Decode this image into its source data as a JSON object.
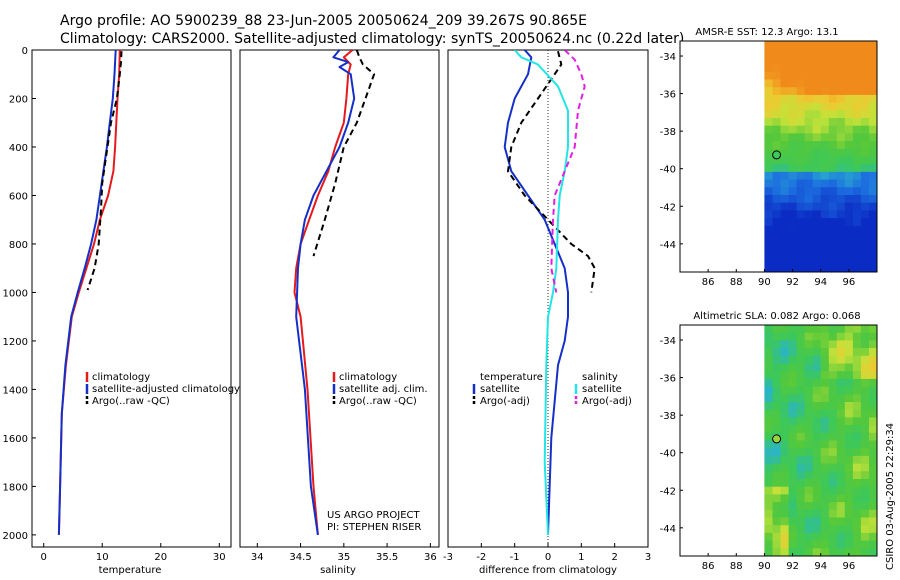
{
  "header": {
    "line1": "Argo profile: AO 5900239_88 23-Jun-2005 20050624_209 39.267S 90.865E",
    "line2": "Climatology: CARS2000. Satellite-adjusted climatology: synTS_20050624.nc (0.22d later)"
  },
  "colors": {
    "climatology": "#e41a1c",
    "satellite": "#1530c8",
    "argo": "#000000",
    "satellite_salinity": "#22e5e5",
    "argo_salinity": "#e020e0"
  },
  "chart_data": [
    {
      "type": "line",
      "xlabel": "temperature",
      "xlim": [
        -2,
        32
      ],
      "ylim": [
        2050,
        0
      ],
      "xticks": [
        0,
        10,
        20,
        30
      ],
      "yticks": [
        0,
        200,
        400,
        600,
        800,
        1000,
        1200,
        1400,
        1600,
        1800,
        2000
      ],
      "legend": [
        "climatology",
        "satellite-adjusted climatology",
        "Argo(..raw -QC)"
      ],
      "series": [
        {
          "name": "climatology",
          "style": "solid",
          "color": "#e41a1c",
          "x": [
            13.0,
            12.9,
            12.6,
            12.4,
            12.2,
            11.9,
            11.0,
            9.6,
            8.6,
            7.3,
            6.0,
            4.8,
            3.8,
            3.1,
            2.8,
            2.6
          ],
          "y": [
            0,
            100,
            200,
            300,
            400,
            500,
            600,
            700,
            800,
            900,
            1000,
            1100,
            1300,
            1500,
            1800,
            2000
          ]
        },
        {
          "name": "satellite-adjusted climatology",
          "style": "solid",
          "color": "#1530c8",
          "x": [
            12.3,
            12.1,
            11.8,
            11.3,
            10.8,
            10.2,
            9.6,
            9.0,
            8.1,
            7.0,
            5.8,
            4.7,
            3.7,
            3.1,
            2.8,
            2.6
          ],
          "y": [
            0,
            100,
            200,
            300,
            400,
            500,
            600,
            700,
            800,
            900,
            1000,
            1100,
            1300,
            1500,
            1800,
            2000
          ]
        },
        {
          "name": "Argo(..raw -QC)",
          "style": "dashed",
          "color": "#000000",
          "x": [
            13.3,
            13.2,
            13.0,
            12.5,
            11.5,
            10.6,
            10.0,
            9.8,
            9.4,
            8.7,
            7.5
          ],
          "y": [
            5,
            50,
            100,
            200,
            300,
            450,
            550,
            650,
            800,
            900,
            990
          ]
        }
      ]
    },
    {
      "type": "line",
      "xlabel": "salinity",
      "xlim": [
        33.8,
        36.1
      ],
      "ylim": [
        2050,
        0
      ],
      "xticks": [
        34,
        34.5,
        35,
        35.5,
        36
      ],
      "legend": [
        "climatology",
        "satellite adj. clim.",
        "Argo(..raw -QC)"
      ],
      "annotation": [
        "US ARGO PROJECT",
        "PI: STEPHEN RISER"
      ],
      "series": [
        {
          "name": "climatology",
          "style": "solid",
          "color": "#e41a1c",
          "x": [
            35.1,
            35.0,
            35.08,
            35.05,
            35.03,
            35.0,
            34.9,
            34.82,
            34.7,
            34.6,
            34.5,
            34.45,
            34.43,
            34.5,
            34.58,
            34.65,
            34.7
          ],
          "y": [
            0,
            30,
            60,
            100,
            200,
            300,
            400,
            500,
            600,
            700,
            800,
            900,
            1000,
            1100,
            1400,
            1800,
            2000
          ]
        },
        {
          "name": "satellite adj. clim.",
          "style": "solid",
          "color": "#1530c8",
          "x": [
            34.95,
            34.88,
            35.05,
            34.95,
            35.08,
            35.12,
            35.05,
            34.95,
            34.8,
            34.65,
            34.55,
            34.5,
            34.47,
            34.45,
            34.55,
            34.62,
            34.7
          ],
          "y": [
            0,
            30,
            50,
            70,
            100,
            200,
            300,
            400,
            500,
            600,
            700,
            800,
            900,
            1100,
            1400,
            1800,
            2000
          ]
        },
        {
          "name": "Argo(..raw -QC)",
          "style": "dashed",
          "color": "#000000",
          "x": [
            35.15,
            35.18,
            35.22,
            35.35,
            35.3,
            35.15,
            35.0,
            34.9,
            34.78,
            34.65
          ],
          "y": [
            0,
            30,
            60,
            100,
            150,
            300,
            400,
            550,
            700,
            850
          ]
        }
      ]
    },
    {
      "type": "line",
      "xlabel": "difference from climatology",
      "xlim": [
        -3,
        3
      ],
      "ylim": [
        2050,
        0
      ],
      "xticks": [
        -3,
        -2,
        -1,
        0,
        1,
        2,
        3
      ],
      "legend": [
        "temperature",
        "satellite",
        "Argo(-adj)",
        "salinity",
        "satellite",
        "Argo(-adj)"
      ],
      "series": [
        {
          "name": "temperature satellite",
          "style": "solid",
          "color": "#1530c8",
          "x": [
            -0.7,
            -0.5,
            -0.6,
            -1.0,
            -1.2,
            -1.3,
            -1.1,
            -0.6,
            -0.1,
            0.2,
            0.5,
            0.6,
            0.6,
            0.5,
            0.3,
            0.1,
            0.0
          ],
          "y": [
            0,
            30,
            100,
            200,
            300,
            400,
            500,
            600,
            700,
            800,
            900,
            1000,
            1100,
            1200,
            1300,
            1600,
            2000
          ]
        },
        {
          "name": "temperature Argo(-adj)",
          "style": "dashed",
          "color": "#000000",
          "x": [
            0.3,
            0.4,
            0.2,
            -0.3,
            -0.8,
            -1.1,
            -1.2,
            -0.7,
            0.0,
            0.7,
            1.2,
            1.4,
            1.3
          ],
          "y": [
            5,
            60,
            100,
            200,
            300,
            400,
            500,
            600,
            700,
            800,
            850,
            900,
            1000
          ]
        },
        {
          "name": "salinity satellite",
          "style": "solid",
          "color": "#22e5e5",
          "x": [
            -1.0,
            -0.8,
            -0.3,
            0.3,
            0.6,
            0.6,
            0.5,
            0.35,
            0.3,
            0.25,
            0.15,
            0.0,
            -0.05,
            -0.1,
            0.0
          ],
          "y": [
            0,
            30,
            60,
            150,
            250,
            400,
            500,
            600,
            700,
            900,
            1000,
            1100,
            1300,
            1700,
            2000
          ]
        },
        {
          "name": "salinity Argo(-adj)",
          "style": "dashed",
          "color": "#e020e0",
          "x": [
            0.5,
            0.8,
            1.0,
            1.1,
            0.9,
            0.8,
            0.5,
            0.2,
            0.15,
            0.1,
            0.25
          ],
          "y": [
            0,
            40,
            100,
            150,
            250,
            400,
            500,
            600,
            700,
            900,
            1000
          ]
        }
      ]
    },
    {
      "type": "heatmap",
      "title": "AMSR-E SST: 12.3 Argo: 13.1",
      "xlim": [
        84,
        98
      ],
      "ylim": [
        -45.5,
        -33.2
      ],
      "xticks": [
        86,
        88,
        90,
        92,
        94,
        96
      ],
      "yticks": [
        -34,
        -36,
        -38,
        -40,
        -42,
        -44
      ],
      "marker": {
        "lon": 90.865,
        "lat": -39.267
      }
    },
    {
      "type": "heatmap",
      "title": "Altimetric SLA: 0.082 Argo: 0.068",
      "xlim": [
        84,
        98
      ],
      "ylim": [
        -45.5,
        -33.2
      ],
      "xticks": [
        86,
        88,
        90,
        92,
        94,
        96
      ],
      "yticks": [
        -34,
        -36,
        -38,
        -40,
        -42,
        -44
      ],
      "marker": {
        "lon": 90.865,
        "lat": -39.267
      }
    }
  ],
  "side_label": "CSIRO 03-Aug-2005 22:29:34"
}
